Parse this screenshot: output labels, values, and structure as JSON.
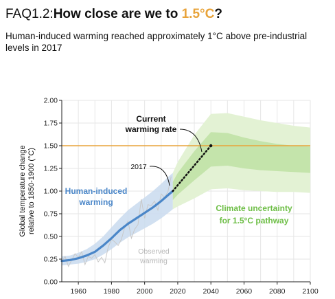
{
  "header": {
    "title_prefix": "FAQ1.2:",
    "title_main": "How close are we to ",
    "title_accent": "1.5°C",
    "title_suffix": "?",
    "subtitle": "Human-induced warming reached approximately 1°C above pre-industrial levels in 2017"
  },
  "chart_data": {
    "type": "line",
    "ylabel": "Global temperature change relative to 1850-1900 (°C)",
    "xlim": [
      1950,
      2100
    ],
    "ylim": [
      0,
      2
    ],
    "x_ticks": [
      1960,
      1980,
      2000,
      2020,
      2040,
      2060,
      2080,
      2100
    ],
    "y_ticks": [
      "0.00",
      "0.25",
      "0.50",
      "0.75",
      "1.00",
      "1.25",
      "1.50",
      "1.75",
      "2.00"
    ],
    "grid": true,
    "target_line": {
      "y": 1.5,
      "color": "#E8A33A"
    },
    "series": [
      {
        "name": "Human-induced warming",
        "color": "#4A86C8",
        "x": [
          1950,
          1955,
          1960,
          1965,
          1970,
          1975,
          1980,
          1985,
          1990,
          1995,
          2000,
          2005,
          2010,
          2015,
          2017
        ],
        "y": [
          0.23,
          0.24,
          0.26,
          0.29,
          0.33,
          0.4,
          0.48,
          0.57,
          0.64,
          0.7,
          0.76,
          0.82,
          0.89,
          0.97,
          1.0
        ],
        "band_lower": [
          0.18,
          0.19,
          0.2,
          0.22,
          0.25,
          0.3,
          0.36,
          0.43,
          0.49,
          0.54,
          0.59,
          0.64,
          0.7,
          0.77,
          0.8
        ],
        "band_upper": [
          0.28,
          0.29,
          0.32,
          0.36,
          0.42,
          0.5,
          0.6,
          0.7,
          0.79,
          0.86,
          0.93,
          1.0,
          1.08,
          1.17,
          1.2
        ]
      },
      {
        "name": "Observed warming",
        "color": "#C8C8C8",
        "x": [
          1950,
          1952,
          1954,
          1956,
          1958,
          1960,
          1962,
          1964,
          1966,
          1968,
          1970,
          1972,
          1974,
          1976,
          1978,
          1980,
          1982,
          1984,
          1986,
          1988,
          1990,
          1992,
          1994,
          1996,
          1998,
          2000,
          2002,
          2004,
          2006,
          2008,
          2010,
          2012,
          2014,
          2016
        ],
        "y": [
          0.22,
          0.28,
          0.17,
          0.24,
          0.31,
          0.27,
          0.33,
          0.19,
          0.28,
          0.26,
          0.3,
          0.22,
          0.27,
          0.21,
          0.38,
          0.47,
          0.44,
          0.4,
          0.47,
          0.6,
          0.67,
          0.48,
          0.58,
          0.63,
          0.91,
          0.7,
          0.85,
          0.84,
          0.89,
          0.79,
          0.97,
          0.93,
          0.99,
          1.16
        ]
      },
      {
        "name": "Current warming rate",
        "style": "dotted",
        "color": "#111111",
        "x": [
          2017,
          2040
        ],
        "y": [
          1.0,
          1.5
        ]
      },
      {
        "name": "Climate uncertainty for 1.5°C pathway",
        "color": "#8CC870",
        "x": [
          2017,
          2020,
          2030,
          2040,
          2050,
          2060,
          2070,
          2080,
          2090,
          2100
        ],
        "outer_upper": [
          1.2,
          1.32,
          1.62,
          1.85,
          1.86,
          1.82,
          1.78,
          1.75,
          1.72,
          1.7
        ],
        "outer_lower": [
          0.8,
          0.83,
          0.92,
          1.02,
          1.03,
          1.01,
          1.0,
          0.99,
          0.99,
          0.98
        ],
        "inner_upper": [
          1.1,
          1.2,
          1.44,
          1.65,
          1.64,
          1.59,
          1.55,
          1.52,
          1.5,
          1.49
        ],
        "inner_lower": [
          0.9,
          0.96,
          1.12,
          1.27,
          1.28,
          1.25,
          1.23,
          1.22,
          1.21,
          1.2
        ]
      }
    ],
    "annotations": {
      "current_rate": [
        "Current",
        "warming rate"
      ],
      "year_2017": "2017",
      "human_induced": [
        "Human-induced",
        "warming"
      ],
      "climate_uncertainty": [
        "Climate uncertainty",
        "for 1.5°C pathway"
      ],
      "observed": [
        "Observed",
        "warming"
      ]
    },
    "colors": {
      "blue_label": "#4A86C8",
      "green_label": "#6DBE45",
      "green_outer": "#E3F2D4",
      "green_inner": "#C4E4AB",
      "blue_band": "#C9DAEF",
      "observed_label": "#B8B8B8"
    }
  }
}
